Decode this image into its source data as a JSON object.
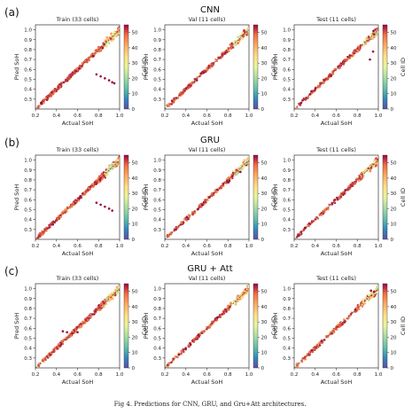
{
  "caption": "Fig 4. Predictions for CNN, GRU, and Gru+Att architectures.",
  "colorbar": {
    "label": "Cell ID",
    "ticks": [
      "0",
      "10",
      "20",
      "30",
      "40",
      "50"
    ],
    "range": [
      0,
      55
    ]
  },
  "chart_data": [
    {
      "row_tag": "(a)",
      "row_title": "CNN",
      "type": "scatter",
      "panels": [
        {
          "title": "Train (33 cells)",
          "xlabel": "Actual SoH",
          "ylabel": "Pred SoH",
          "xlim": [
            0.2,
            1.0
          ],
          "ylim": [
            0.2,
            1.05
          ],
          "xticks": [
            "0.2",
            "0.4",
            "0.6",
            "0.8",
            "1.0"
          ],
          "yticks": [
            "0.3",
            "0.4",
            "0.5",
            "0.6",
            "0.7",
            "0.8",
            "0.9",
            "1.0"
          ],
          "reference_line": "y = x",
          "outliers": [
            [
              0.82,
              0.53
            ],
            [
              0.86,
              0.51
            ],
            [
              0.9,
              0.49
            ],
            [
              0.93,
              0.47
            ],
            [
              0.95,
              0.46
            ],
            [
              0.78,
              0.55
            ]
          ]
        },
        {
          "title": "Val (11 cells)",
          "xlabel": "Actual SoH",
          "ylabel": "Pred SoH",
          "xlim": [
            0.2,
            1.0
          ],
          "ylim": [
            0.2,
            1.05
          ],
          "xticks": [
            "0.2",
            "0.4",
            "0.6",
            "0.8",
            "1.0"
          ],
          "yticks": [
            "0.3",
            "0.4",
            "0.5",
            "0.6",
            "0.7",
            "0.8",
            "0.9",
            "1.0"
          ],
          "reference_line": "y = x",
          "outliers": []
        },
        {
          "title": "Test (11 cells)",
          "xlabel": "Actual SoH",
          "ylabel": "Pred SoH",
          "xlim": [
            0.2,
            1.0
          ],
          "ylim": [
            0.2,
            1.05
          ],
          "xticks": [
            "0.2",
            "0.4",
            "0.6",
            "0.8",
            "1.0"
          ],
          "yticks": [
            "0.3",
            "0.4",
            "0.5",
            "0.6",
            "0.7",
            "0.8",
            "0.9",
            "1.0"
          ],
          "reference_line": "y = x",
          "outliers": [
            [
              0.92,
              0.7
            ],
            [
              0.95,
              0.78
            ]
          ]
        }
      ]
    },
    {
      "row_tag": "(b)",
      "row_title": "GRU",
      "type": "scatter",
      "panels": [
        {
          "title": "Train (33 cells)",
          "xlabel": "Actual SoH",
          "ylabel": "Pred SoH",
          "xlim": [
            0.2,
            1.0
          ],
          "ylim": [
            0.2,
            1.05
          ],
          "xticks": [
            "0.2",
            "0.4",
            "0.6",
            "0.8",
            "1.0"
          ],
          "yticks": [
            "0.3",
            "0.4",
            "0.5",
            "0.6",
            "0.7",
            "0.8",
            "0.9",
            "1.0"
          ],
          "reference_line": "y = x",
          "outliers": [
            [
              0.82,
              0.55
            ],
            [
              0.86,
              0.53
            ],
            [
              0.9,
              0.51
            ],
            [
              0.93,
              0.49
            ],
            [
              0.78,
              0.57
            ]
          ]
        },
        {
          "title": "Val (11 cells)",
          "xlabel": "Actual SoH",
          "ylabel": "Pred SoH",
          "xlim": [
            0.2,
            1.0
          ],
          "ylim": [
            0.2,
            1.05
          ],
          "xticks": [
            "0.2",
            "0.4",
            "0.6",
            "0.8",
            "1.0"
          ],
          "yticks": [
            "0.3",
            "0.4",
            "0.5",
            "0.6",
            "0.7",
            "0.8",
            "0.9",
            "1.0"
          ],
          "reference_line": "y = x",
          "outliers": []
        },
        {
          "title": "Test (11 cells)",
          "xlabel": "Actual SoH",
          "ylabel": "Pred SoH",
          "xlim": [
            0.2,
            1.0
          ],
          "ylim": [
            0.2,
            1.05
          ],
          "xticks": [
            "0.2",
            "0.4",
            "0.6",
            "0.8",
            "1.0"
          ],
          "yticks": [
            "0.3",
            "0.4",
            "0.5",
            "0.6",
            "0.7",
            "0.8",
            "0.9",
            "1.0"
          ],
          "reference_line": "y = x",
          "outliers": []
        }
      ]
    },
    {
      "row_tag": "(c)",
      "row_title": "GRU + Att",
      "type": "scatter",
      "panels": [
        {
          "title": "Train (33 cells)",
          "xlabel": "Actual SoH",
          "ylabel": "Pred SoH",
          "xlim": [
            0.2,
            1.0
          ],
          "ylim": [
            0.2,
            1.05
          ],
          "xticks": [
            "0.2",
            "0.4",
            "0.6",
            "0.8",
            "1.0"
          ],
          "yticks": [
            "0.3",
            "0.4",
            "0.5",
            "0.6",
            "0.7",
            "0.8",
            "0.9",
            "1.0"
          ],
          "reference_line": "y = x",
          "outliers": [
            [
              0.46,
              0.57
            ],
            [
              0.5,
              0.56
            ],
            [
              0.55,
              0.55
            ],
            [
              0.6,
              0.56
            ]
          ]
        },
        {
          "title": "Val (11 cells)",
          "xlabel": "Actual SoH",
          "ylabel": "Pred SoH",
          "xlim": [
            0.2,
            1.0
          ],
          "ylim": [
            0.2,
            1.05
          ],
          "xticks": [
            "0.2",
            "0.4",
            "0.6",
            "0.8",
            "1.0"
          ],
          "yticks": [
            "0.3",
            "0.4",
            "0.5",
            "0.6",
            "0.7",
            "0.8",
            "0.9",
            "1.0"
          ],
          "reference_line": "y = x",
          "outliers": []
        },
        {
          "title": "Test (11 cells)",
          "xlabel": "Actual SoH",
          "ylabel": "Pred SoH",
          "xlim": [
            0.2,
            1.0
          ],
          "ylim": [
            0.2,
            1.05
          ],
          "xticks": [
            "0.2",
            "0.4",
            "0.6",
            "0.8",
            "1.0"
          ],
          "yticks": [
            "0.3",
            "0.4",
            "0.5",
            "0.6",
            "0.7",
            "0.8",
            "0.9",
            "1.0"
          ],
          "reference_line": "y = x",
          "outliers": [
            [
              0.93,
              0.98
            ],
            [
              0.96,
              0.97
            ]
          ]
        }
      ]
    }
  ]
}
